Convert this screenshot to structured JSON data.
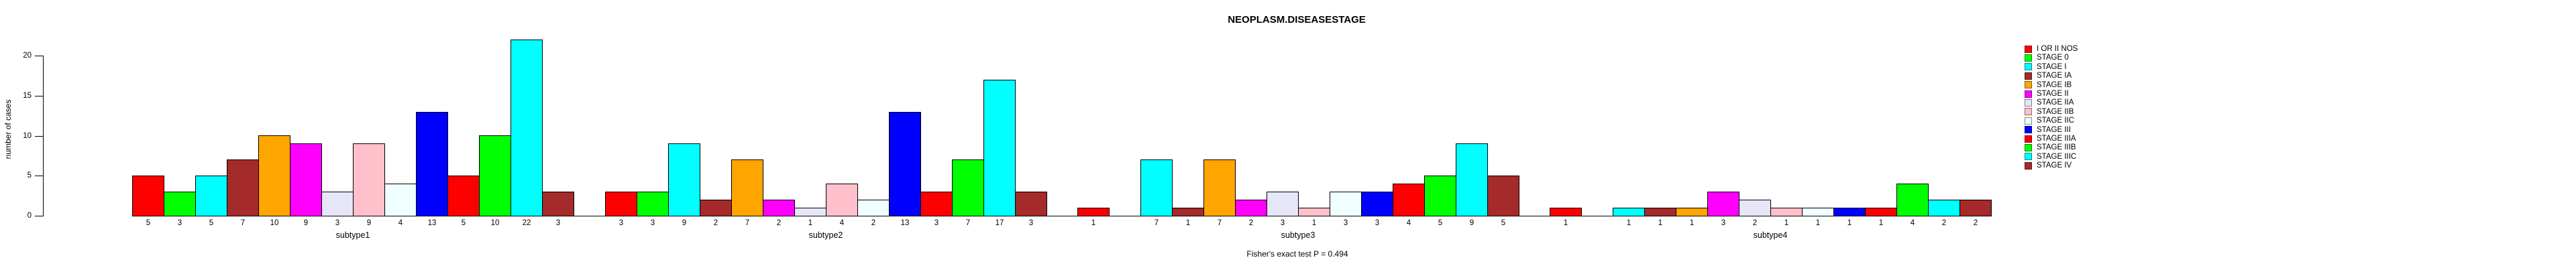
{
  "title": "NEOPLASM.DISEASESTAGE",
  "footer_note": "Fisher's exact test P = 0.494",
  "y_axis": {
    "label": "number of cases",
    "ticks": [
      0,
      5,
      10,
      15,
      20
    ]
  },
  "legend": {
    "position": "right",
    "entries": [
      {
        "label": "I OR II NOS",
        "color": "#FF0000"
      },
      {
        "label": "STAGE 0",
        "color": "#00FF00"
      },
      {
        "label": "STAGE I",
        "color": "#00FFFF"
      },
      {
        "label": "STAGE IA",
        "color": "#A52A2A"
      },
      {
        "label": "STAGE IB",
        "color": "#FFA500"
      },
      {
        "label": "STAGE II",
        "color": "#FF00FF"
      },
      {
        "label": "STAGE IIA",
        "color": "#E6E6FA"
      },
      {
        "label": "STAGE IIB",
        "color": "#FFC0CB"
      },
      {
        "label": "STAGE IIC",
        "color": "#F0FFFF"
      },
      {
        "label": "STAGE III",
        "color": "#0000FF"
      },
      {
        "label": "STAGE IIIA",
        "color": "#FF0000"
      },
      {
        "label": "STAGE IIIB",
        "color": "#00FF00"
      },
      {
        "label": "STAGE IIIC",
        "color": "#00FFFF"
      },
      {
        "label": "STAGE IV",
        "color": "#A52A2A"
      }
    ]
  },
  "chart_data": {
    "type": "bar",
    "title": "NEOPLASM.DISEASESTAGE",
    "xlabel": "",
    "ylabel": "number of cases",
    "ylim": [
      0,
      20
    ],
    "grid": false,
    "legend_position": "right",
    "annotation": "Fisher's exact test P = 0.494",
    "categories": [
      "I OR II NOS",
      "STAGE 0",
      "STAGE I",
      "STAGE IA",
      "STAGE IB",
      "STAGE II",
      "STAGE IIA",
      "STAGE IIB",
      "STAGE IIC",
      "STAGE III",
      "STAGE IIIA",
      "STAGE IIIB",
      "STAGE IIIC",
      "STAGE IV"
    ],
    "colors": [
      "#FF0000",
      "#00FF00",
      "#00FFFF",
      "#A52A2A",
      "#FFA500",
      "#FF00FF",
      "#E6E6FA",
      "#FFC0CB",
      "#F0FFFF",
      "#0000FF",
      "#FF0000",
      "#00FF00",
      "#00FFFF",
      "#A52A2A"
    ],
    "series": [
      {
        "name": "subtype1",
        "values": [
          5,
          3,
          5,
          7,
          10,
          9,
          3,
          9,
          4,
          13,
          5,
          10,
          22,
          3
        ]
      },
      {
        "name": "subtype2",
        "values": [
          3,
          3,
          9,
          2,
          7,
          2,
          1,
          4,
          2,
          13,
          3,
          7,
          17,
          3
        ]
      },
      {
        "name": "subtype3",
        "values": [
          1,
          0,
          7,
          1,
          7,
          2,
          3,
          1,
          3,
          3,
          4,
          5,
          9,
          5
        ]
      },
      {
        "name": "subtype4",
        "values": [
          1,
          0,
          1,
          1,
          1,
          3,
          2,
          1,
          1,
          1,
          1,
          4,
          2,
          2
        ]
      }
    ],
    "bar_value_labels_shown": true
  }
}
